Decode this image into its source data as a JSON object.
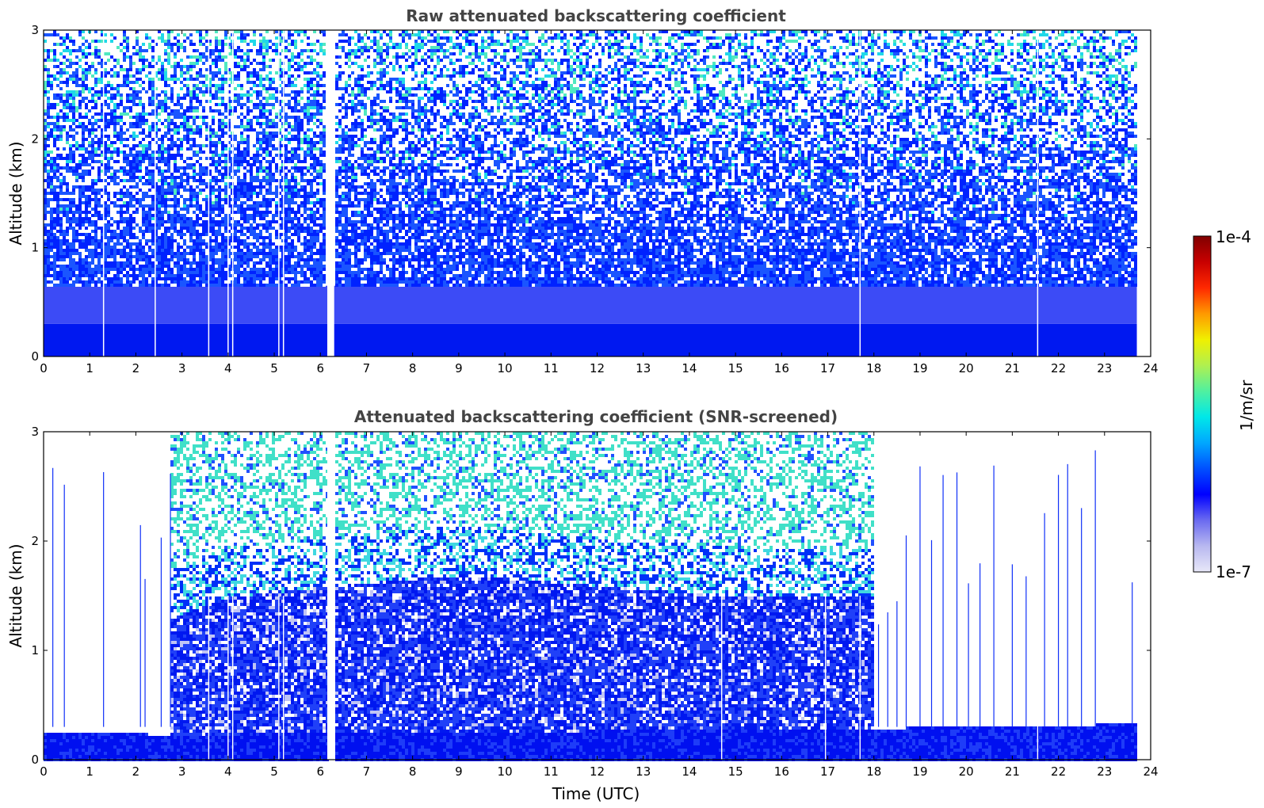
{
  "chart_data": [
    {
      "type": "heatmap",
      "id": "raw",
      "title": "Raw attenuated backscattering coefficient",
      "xlabel": "",
      "ylabel": "Altitude (km)",
      "xlim": [
        0,
        24
      ],
      "ylim": [
        0,
        3
      ],
      "x_ticks": [
        "0",
        "1",
        "2",
        "3",
        "4",
        "5",
        "6",
        "7",
        "8",
        "9",
        "10",
        "11",
        "12",
        "13",
        "14",
        "15",
        "16",
        "17",
        "18",
        "19",
        "20",
        "21",
        "22",
        "23",
        "24"
      ],
      "y_ticks": [
        "0",
        "1",
        "2",
        "3"
      ],
      "data_extent_hours": [
        0,
        23.7
      ],
      "data_gaps_hours": [
        [
          6.15,
          6.3
        ]
      ],
      "dropout_lines_hours": [
        1.3,
        2.42,
        3.58,
        4.0,
        4.1,
        5.1,
        5.2,
        17.7,
        21.55
      ],
      "description_profile": [
        {
          "altitude_range_km": [
            0,
            0.3
          ],
          "level": "strong (dark blue, ~1e-6)"
        },
        {
          "altitude_range_km": [
            0.3,
            1.0
          ],
          "level": "blue, decreasing"
        },
        {
          "altitude_range_km": [
            1.0,
            3.0
          ],
          "level": "noisy blue/white/cyan speckle"
        }
      ]
    },
    {
      "type": "heatmap",
      "id": "snr",
      "title": "Attenuated backscattering coefficient (SNR-screened)",
      "xlabel": "Time (UTC)",
      "ylabel": "Altitude (km)",
      "xlim": [
        0,
        24
      ],
      "ylim": [
        0,
        3
      ],
      "x_ticks": [
        "0",
        "1",
        "2",
        "3",
        "4",
        "5",
        "6",
        "7",
        "8",
        "9",
        "10",
        "11",
        "12",
        "13",
        "14",
        "15",
        "16",
        "17",
        "18",
        "19",
        "20",
        "21",
        "22",
        "23",
        "24"
      ],
      "y_ticks": [
        "0",
        "1",
        "2",
        "3"
      ],
      "boundary_layer_top_km": [
        {
          "x": 0,
          "y": 0.25
        },
        {
          "x": 1.3,
          "y": 0.26
        },
        {
          "x": 2.7,
          "y": 0.24
        },
        {
          "x": 18.0,
          "y": 0.3
        },
        {
          "x": 21.0,
          "y": 0.32
        },
        {
          "x": 23.7,
          "y": 0.34
        }
      ],
      "signal_top_km": [
        {
          "x": 2.7,
          "y": 3.0
        },
        {
          "x": 6.3,
          "y": 3.0
        },
        {
          "x": 18.0,
          "y": 3.0
        }
      ],
      "dense_blue_top_km": [
        {
          "x": 2.7,
          "y": 1.3
        },
        {
          "x": 4.0,
          "y": 1.5
        },
        {
          "x": 6.3,
          "y": 1.6
        },
        {
          "x": 9.0,
          "y": 1.7
        },
        {
          "x": 12.0,
          "y": 1.6
        },
        {
          "x": 15.0,
          "y": 1.5
        },
        {
          "x": 18.0,
          "y": 1.5
        }
      ]
    }
  ],
  "colorbar": {
    "label": "1/m/sr",
    "max_label": "1e-4",
    "min_label": "1e-7",
    "stops": [
      "#e8e8f8",
      "#b8b8f0",
      "#6a6af0",
      "#0000ff",
      "#0050ff",
      "#00a8ff",
      "#00e8e8",
      "#50f0a0",
      "#b0f050",
      "#f0f000",
      "#ff9900",
      "#ff2800",
      "#c80000",
      "#800000"
    ]
  }
}
